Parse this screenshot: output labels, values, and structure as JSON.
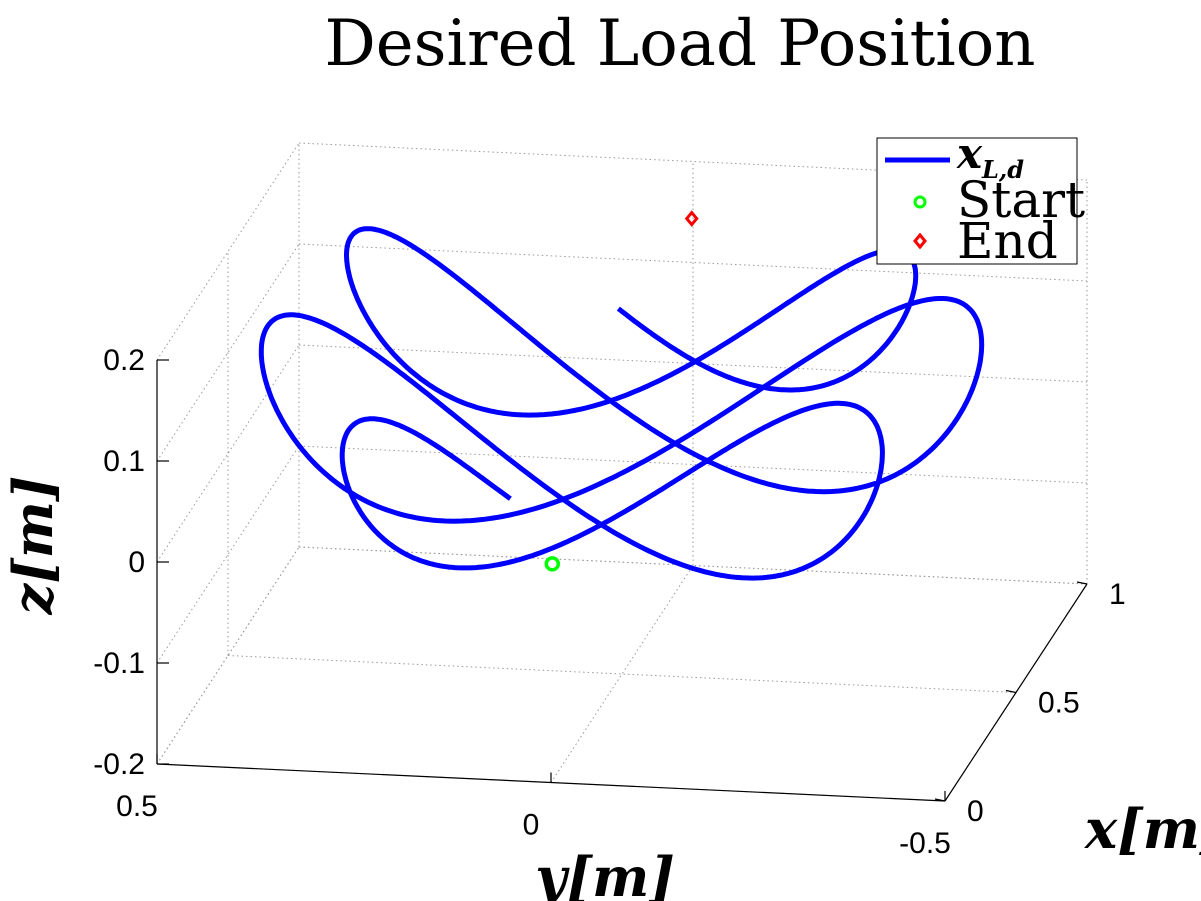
{
  "chart_data": {
    "type": "line3d",
    "title": "Desired Load Position",
    "xlabel": "x[m]",
    "ylabel": "y[m]",
    "zlabel": "z[m]",
    "xlim": [
      0,
      1
    ],
    "ylim": [
      -0.5,
      0.5
    ],
    "zlim": [
      -0.2,
      0.2
    ],
    "x_ticks": [
      "0",
      "0.5",
      "1"
    ],
    "y_ticks": [
      "0.5",
      "0",
      "-0.5"
    ],
    "z_ticks": [
      "0.2",
      "0.1",
      "0",
      "-0.1",
      "-0.2"
    ],
    "grid": true,
    "legend": {
      "placement": "top-right",
      "entries": [
        {
          "label": "x_{L,d}",
          "math_main": "x",
          "math_sub": "L,d",
          "marker": "line",
          "color": "#0000ff"
        },
        {
          "label": "Start",
          "marker": "circle",
          "color": "#00ff00"
        },
        {
          "label": "End",
          "marker": "diamond",
          "color": "#ff0000"
        }
      ]
    },
    "series": [
      {
        "name": "x_{L,d}",
        "color": "#0000ff",
        "curve": "figure-eight",
        "x_range": [
          0.1,
          0.9
        ],
        "y_range": [
          -0.45,
          0.45
        ],
        "z_range": [
          -0.06,
          0.19
        ],
        "loops": 3
      }
    ],
    "start_point": {
      "x": 0.12,
      "y": 0.02,
      "z": -0.01,
      "color": "#00ff00"
    },
    "end_point": {
      "x": 0.88,
      "y": -0.02,
      "z": 0.17,
      "color": "#ff0000"
    }
  }
}
